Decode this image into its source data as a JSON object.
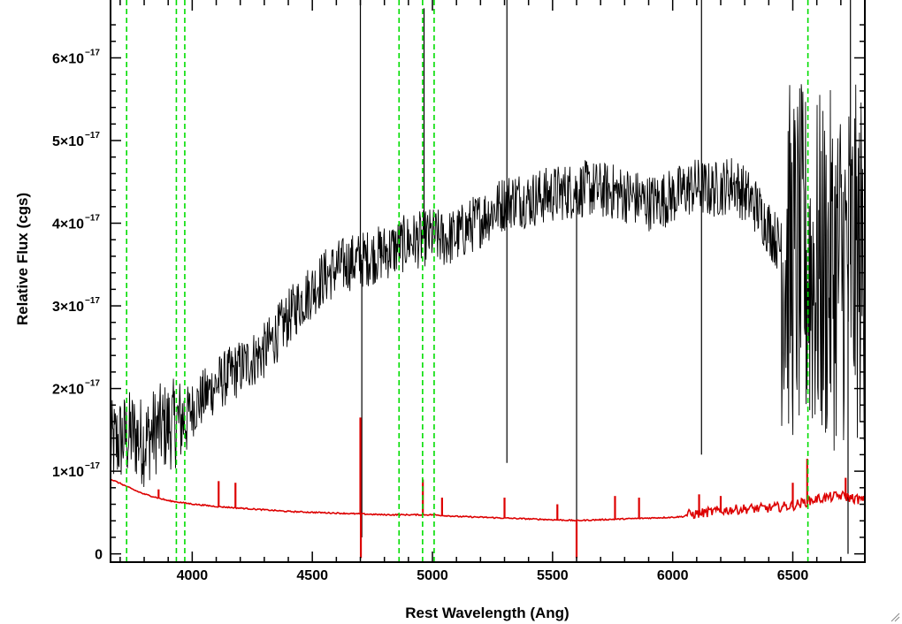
{
  "chart_data": {
    "type": "line",
    "xlabel": "Rest Wavelength (Ang)",
    "ylabel": "Relative Flux (cgs)",
    "xlim": [
      3660,
      6800
    ],
    "ylim": [
      -1e-18,
      6.7e-17
    ],
    "x_ticks": [
      {
        "value": 4000,
        "label": "4000"
      },
      {
        "value": 4500,
        "label": "4500"
      },
      {
        "value": 5000,
        "label": "5000"
      },
      {
        "value": 5500,
        "label": "5500"
      },
      {
        "value": 6000,
        "label": "6000"
      },
      {
        "value": 6500,
        "label": "6500"
      }
    ],
    "y_ticks": [
      {
        "value": 0,
        "mantissa": "0",
        "exponent": ""
      },
      {
        "value": 1e-17,
        "mantissa": "1×10",
        "exponent": "−17"
      },
      {
        "value": 2e-17,
        "mantissa": "2×10",
        "exponent": "−17"
      },
      {
        "value": 3e-17,
        "mantissa": "3×10",
        "exponent": "−17"
      },
      {
        "value": 4e-17,
        "mantissa": "4×10",
        "exponent": "−17"
      },
      {
        "value": 5e-17,
        "mantissa": "5×10",
        "exponent": "−17"
      },
      {
        "value": 6e-17,
        "mantissa": "6×10",
        "exponent": "−17"
      }
    ],
    "series": [
      {
        "color": "#000000",
        "style": "noisy spectrum",
        "x": [
          3660,
          3700,
          3750,
          3800,
          3850,
          3900,
          3950,
          4000,
          4050,
          4100,
          4150,
          4200,
          4250,
          4300,
          4350,
          4400,
          4450,
          4500,
          4550,
          4600,
          4650,
          4700,
          4750,
          4800,
          4850,
          4900,
          4950,
          5000,
          5050,
          5100,
          5150,
          5200,
          5250,
          5300,
          5350,
          5400,
          5450,
          5500,
          5550,
          5600,
          5650,
          5700,
          5750,
          5800,
          5850,
          5900,
          5950,
          6000,
          6050,
          6100,
          6150,
          6200,
          6250,
          6300,
          6350,
          6400,
          6450,
          6500,
          6550,
          6600,
          6650,
          6700,
          6750,
          6800
        ],
        "y": [
          1.3e-17,
          1.38e-17,
          1.45e-17,
          1.35e-17,
          1.5e-17,
          1.55e-17,
          1.6e-17,
          1.75e-17,
          1.9e-17,
          2.05e-17,
          2.15e-17,
          2.25e-17,
          2.35e-17,
          2.45e-17,
          2.65e-17,
          2.85e-17,
          3.05e-17,
          3.2e-17,
          3.35e-17,
          3.45e-17,
          3.52e-17,
          3.55e-17,
          3.6e-17,
          3.65e-17,
          3.7e-17,
          3.78e-17,
          3.8e-17,
          3.85e-17,
          3.8e-17,
          3.85e-17,
          3.95e-17,
          4.05e-17,
          4.15e-17,
          4.25e-17,
          4.3e-17,
          4.28e-17,
          4.32e-17,
          4.35e-17,
          4.38e-17,
          4.4e-17,
          4.42e-17,
          4.4e-17,
          4.38e-17,
          4.35e-17,
          4.3e-17,
          4.25e-17,
          4.28e-17,
          4.32e-17,
          4.4e-17,
          4.45e-17,
          4.4e-17,
          4.42e-17,
          4.5e-17,
          4.35e-17,
          4.2e-17,
          3.95e-17,
          3.7e-17,
          3.5e-17,
          3.5e-17,
          3.4e-17,
          3.4e-17,
          3.5e-17,
          3.5e-17,
          3.5e-17
        ],
        "spikes": [
          {
            "x": 4700,
            "y": 6.8e-17
          },
          {
            "x": 4706,
            "y": 2e-18
          },
          {
            "x": 4965,
            "y": 6.6e-17
          },
          {
            "x": 5310,
            "y": 6.8e-17
          },
          {
            "x": 5310,
            "y": 1.1e-17
          },
          {
            "x": 5600,
            "y": 0.0
          },
          {
            "x": 6120,
            "y": 6.8e-17
          },
          {
            "x": 6120,
            "y": 1.2e-17
          },
          {
            "x": 6730,
            "y": 0.0
          },
          {
            "x": 6740,
            "y": 6.8e-17
          }
        ]
      },
      {
        "color": "#dd0000",
        "style": "error spectrum",
        "x": [
          3660,
          3700,
          3750,
          3800,
          3850,
          3900,
          3950,
          4000,
          4100,
          4200,
          4300,
          4400,
          4500,
          4600,
          4700,
          4800,
          4900,
          5000,
          5100,
          5200,
          5300,
          5400,
          5500,
          5600,
          5700,
          5800,
          5900,
          6000,
          6100,
          6200,
          6300,
          6400,
          6500,
          6600,
          6700,
          6800
        ],
        "y": [
          9e-18,
          8.5e-18,
          7.8e-18,
          7.2e-18,
          6.8e-18,
          6.4e-18,
          6.2e-18,
          6e-18,
          5.7e-18,
          5.5e-18,
          5.3e-18,
          5.1e-18,
          5e-18,
          4.9e-18,
          4.8e-18,
          4.7e-18,
          4.7e-18,
          4.7e-18,
          4.5e-18,
          4.4e-18,
          4.3e-18,
          4.2e-18,
          4.1e-18,
          4e-18,
          4.1e-18,
          4.2e-18,
          4.3e-18,
          4.4e-18,
          4.6e-18,
          5e-18,
          5.2e-18,
          5.3e-18,
          5.6e-18,
          6.4e-18,
          6.8e-18,
          6.2e-18
        ],
        "spikes": [
          {
            "x": 3860,
            "y": 7.8e-18
          },
          {
            "x": 4110,
            "y": 8.8e-18
          },
          {
            "x": 4180,
            "y": 8.6e-18
          },
          {
            "x": 4700,
            "y": 1.65e-17
          },
          {
            "x": 4702,
            "y": -5e-19
          },
          {
            "x": 4960,
            "y": 9e-18
          },
          {
            "x": 5040,
            "y": 6.8e-18
          },
          {
            "x": 5300,
            "y": 6.8e-18
          },
          {
            "x": 5520,
            "y": 6e-18
          },
          {
            "x": 5600,
            "y": -5e-19
          },
          {
            "x": 5760,
            "y": 7e-18
          },
          {
            "x": 5860,
            "y": 6.8e-18
          },
          {
            "x": 6110,
            "y": 7.2e-18
          },
          {
            "x": 6200,
            "y": 7e-18
          },
          {
            "x": 6500,
            "y": 8.6e-18
          },
          {
            "x": 6560,
            "y": 1.15e-17
          },
          {
            "x": 6720,
            "y": 9.2e-18
          }
        ]
      }
    ],
    "reference_lines": {
      "color": "#00dd00",
      "style": "dashed",
      "x": [
        3727,
        3934,
        3969,
        4861,
        4959,
        5007,
        6563
      ]
    },
    "grid": false,
    "legend": "none"
  }
}
